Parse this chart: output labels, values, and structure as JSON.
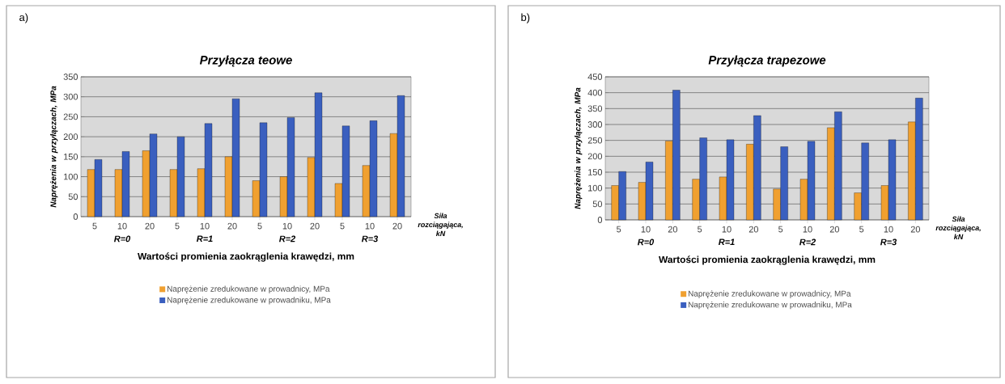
{
  "chart_data": [
    {
      "type": "bar",
      "title": "Przyłącza teowe",
      "xlabel": "Wartości promienia zaokrąglenia krawędzi, mm",
      "ylabel": "Naprężenia w przyłączach, MPa",
      "categories": [
        "5",
        "10",
        "20",
        "5",
        "10",
        "20",
        "5",
        "10",
        "20",
        "5",
        "10",
        "20"
      ],
      "series": [
        {
          "name": "Naprężenie zredukowane w prowadnicy, MPa",
          "color": "#f0a030",
          "values": [
            118,
            118,
            165,
            118,
            120,
            150,
            90,
            100,
            148,
            83,
            128,
            208
          ]
        },
        {
          "name": "Naprężenie zredukowane w prowadniku, MPa",
          "color": "#3a5fbf",
          "values": [
            143,
            163,
            207,
            200,
            233,
            295,
            235,
            248,
            310,
            227,
            240,
            303
          ]
        }
      ],
      "ylim": [
        0,
        350
      ],
      "yticks": [
        0,
        50,
        100,
        150,
        200,
        250,
        300,
        350
      ],
      "grid": "y",
      "legend": "bottom",
      "annotations": [
        "a)",
        "R=0",
        "R=1",
        "R=2",
        "R=3",
        "Siła rozciągająca, kN"
      ]
    },
    {
      "type": "bar",
      "title": "Przyłącza trapezowe",
      "xlabel": "Wartości promienia zaokrąglenia krawędzi, mm",
      "ylabel": "Naprężenia w przyłączach, MPa",
      "categories": [
        "5",
        "10",
        "20",
        "5",
        "10",
        "20",
        "5",
        "10",
        "20",
        "5",
        "10",
        "20"
      ],
      "series": [
        {
          "name": "Naprężenie zredukowane w prowadnicy, MPa",
          "color": "#f0a030",
          "values": [
            108,
            118,
            248,
            128,
            135,
            238,
            97,
            128,
            290,
            85,
            108,
            308
          ]
        },
        {
          "name": "Naprężenie zredukowane w prowadniku, MPa",
          "color": "#3a5fbf",
          "values": [
            152,
            182,
            408,
            258,
            252,
            328,
            230,
            247,
            340,
            242,
            252,
            383
          ]
        }
      ],
      "ylim": [
        0,
        450
      ],
      "yticks": [
        0,
        50,
        100,
        150,
        200,
        250,
        300,
        350,
        400,
        450
      ],
      "grid": "y",
      "legend": "bottom",
      "annotations": [
        "b)",
        "R=0",
        "R=1",
        "R=2",
        "R=3",
        "Siła rozciągająca, kN"
      ]
    }
  ]
}
